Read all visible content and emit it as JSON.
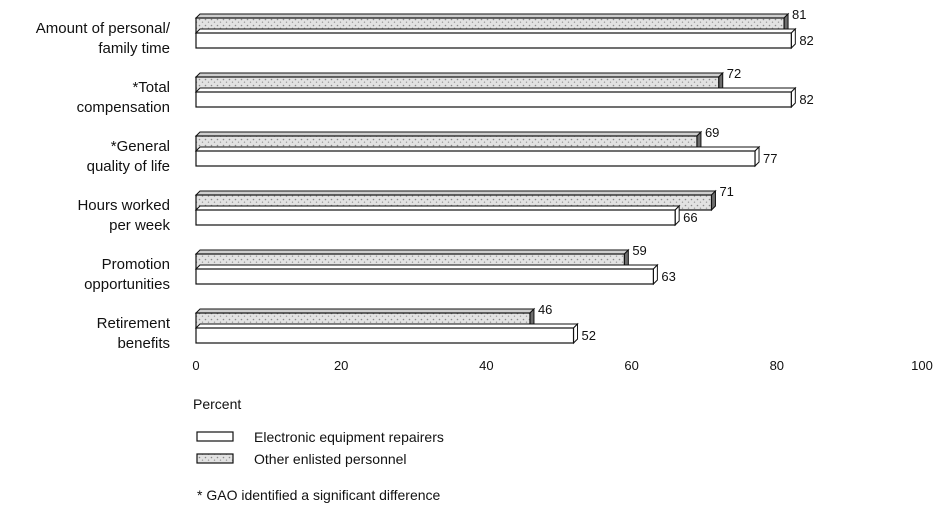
{
  "chart_data": {
    "type": "bar",
    "orientation": "horizontal",
    "categories": [
      [
        "Amount of personal/",
        "family time"
      ],
      [
        "*Total",
        "compensation"
      ],
      [
        "*General",
        "quality of life"
      ],
      [
        "Hours worked",
        "per week"
      ],
      [
        "Promotion",
        "opportunities"
      ],
      [
        "Retirement",
        "benefits"
      ]
    ],
    "series": [
      {
        "name": "Other enlisted personnel",
        "values": [
          81,
          72,
          69,
          71,
          59,
          46
        ],
        "color": "#d4d4d4"
      },
      {
        "name": "Electronic equipment repairers",
        "values": [
          82,
          82,
          77,
          66,
          63,
          52
        ],
        "color": "#ffffff"
      }
    ],
    "xlabel": "Percent",
    "xlim": [
      0,
      100
    ],
    "xticks": [
      "0",
      "20",
      "40",
      "60",
      "80",
      "100"
    ],
    "grid": false,
    "legend": {
      "placement": "bottom-left",
      "entries": [
        "Electronic equipment repairers",
        "Other enlisted personnel"
      ]
    },
    "footnote": "* GAO identified a significant difference"
  }
}
